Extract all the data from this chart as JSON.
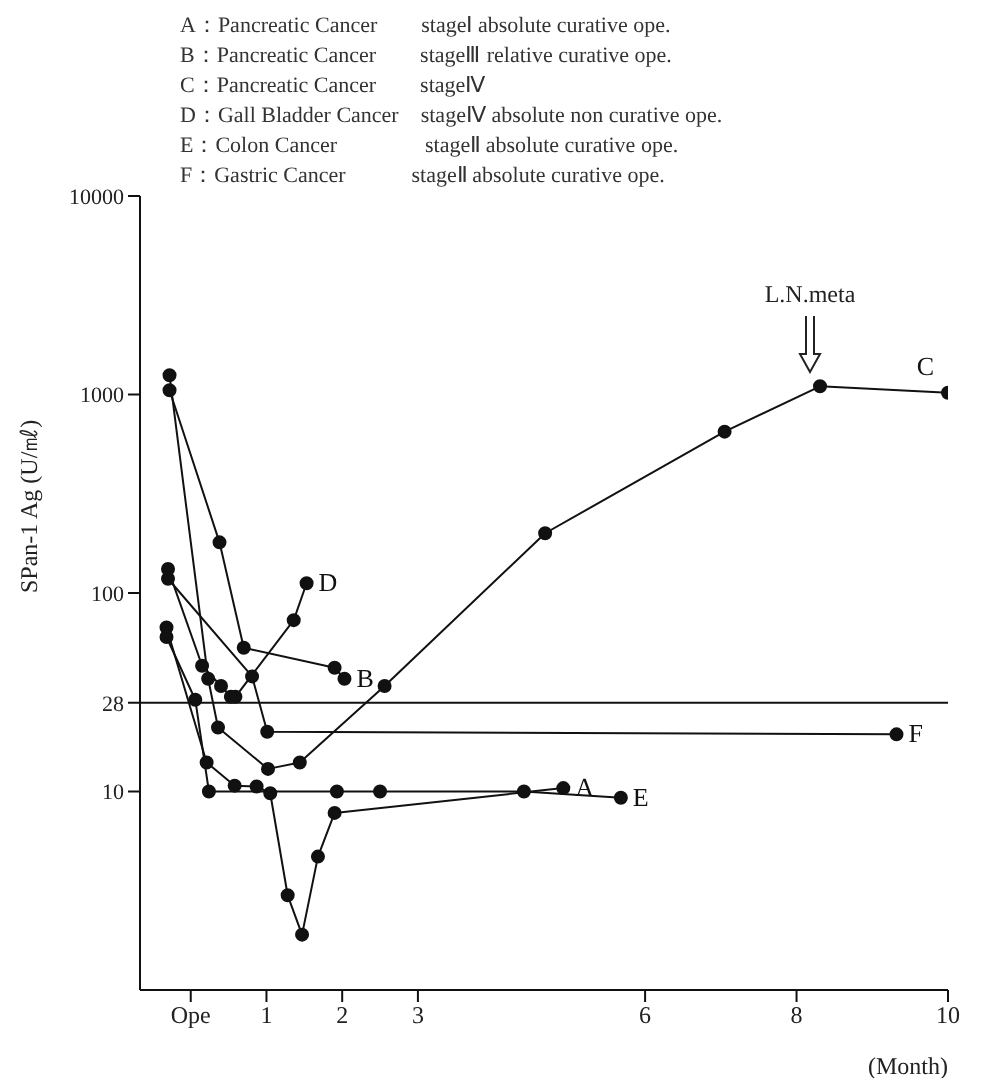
{
  "chart_data": {
    "type": "line",
    "xlabel": "(Month)",
    "ylabel": "SPan-1 Ag (U/㎖)",
    "annotations": [
      "A：Pancreatic Cancer　　stageⅠ absolute curative ope.",
      "B：Pancreatic Cancer　　stageⅢ relative curative ope.",
      "C：Pancreatic Cancer　　stageⅣ",
      "D：Gall Bladder Cancer　stageⅣ absolute non curative ope.",
      "E：Colon Cancer　　　　stageⅡ absolute curative ope.",
      "F：Gastric Cancer　　　stageⅡ absolute curative ope.",
      "L.N.meta"
    ],
    "series": [
      {
        "name": "A",
        "color": "#111111",
        "x": [
          -0.32,
          0.21,
          0.58,
          0.87,
          1.05,
          1.28,
          1.47,
          1.68,
          1.9,
          4.92
        ],
        "values": [
          67,
          14,
          10.7,
          10.6,
          9.8,
          3,
          1.9,
          4.7,
          7.8,
          10.4
        ]
      },
      {
        "name": "B",
        "color": "#111111",
        "x": [
          -0.28,
          0.38,
          0.7,
          1.9,
          2.03
        ],
        "values": [
          1050,
          180,
          53,
          42,
          37
        ]
      },
      {
        "name": "C",
        "color": "#111111",
        "x": [
          -0.28,
          0.23,
          0.36,
          1.02,
          1.44,
          2.56,
          4.68,
          7.05,
          8.31,
          10
        ],
        "values": [
          1250,
          37,
          21,
          13,
          14,
          34,
          200,
          650,
          1100,
          1020
        ]
      },
      {
        "name": "D",
        "color": "#111111",
        "x": [
          -0.3,
          0.15,
          0.4,
          0.53,
          0.59,
          1.36,
          1.53
        ],
        "values": [
          132,
          43,
          34,
          30,
          30,
          73,
          112
        ]
      },
      {
        "name": "E",
        "color": "#111111",
        "x": [
          -0.32,
          0.06,
          0.24,
          1.93,
          2.5,
          4.4,
          5.68
        ],
        "values": [
          60,
          29,
          10,
          10,
          10,
          10,
          9.3
        ]
      },
      {
        "name": "F",
        "color": "#111111",
        "x": [
          -0.3,
          0.81,
          1.01,
          9.32
        ],
        "values": [
          118,
          38,
          20,
          19.4
        ]
      }
    ],
    "xlim": [
      -0.67,
      10
    ],
    "xticks": [
      {
        "value": 0,
        "label": "Ope"
      },
      1,
      2,
      3,
      6,
      8,
      10
    ],
    "ylim": [
      1,
      10000
    ],
    "yticks": [
      10,
      28,
      100,
      1000,
      10000
    ],
    "log": true,
    "ref_lines": [
      {
        "axis": "y",
        "value": 28,
        "color": "#111111"
      }
    ],
    "grid": false,
    "legend": false,
    "marker": "circle",
    "line_style": "solid"
  }
}
